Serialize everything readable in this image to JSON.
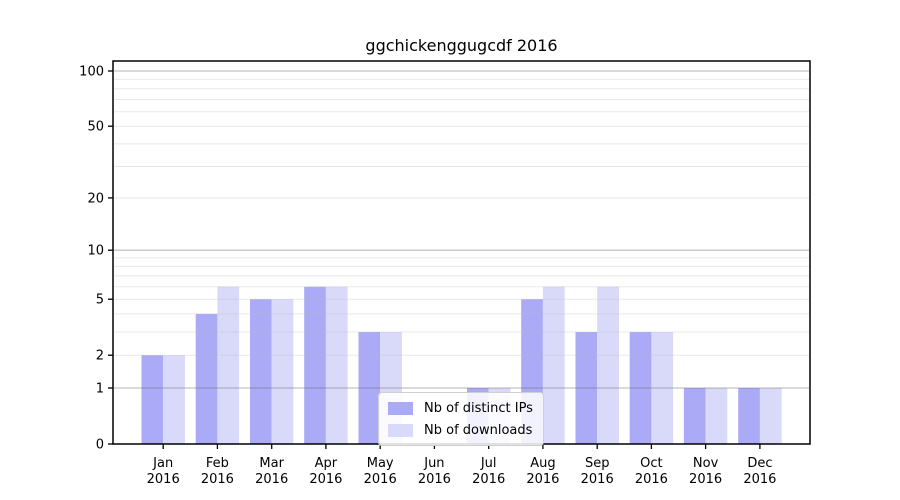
{
  "chart_data": {
    "type": "bar",
    "title": "ggchickenggugcdf 2016",
    "categories": [
      "Jan",
      "Feb",
      "Mar",
      "Apr",
      "May",
      "Jun",
      "Jul",
      "Aug",
      "Sep",
      "Oct",
      "Nov",
      "Dec"
    ],
    "category_year": "2016",
    "series": [
      {
        "name": "Nb of distinct IPs",
        "color": "#aaaaf6",
        "values": [
          2,
          4,
          5,
          6,
          3,
          0,
          1,
          5,
          3,
          3,
          1,
          1
        ]
      },
      {
        "name": "Nb of downloads",
        "color": "#d9d9fa",
        "values": [
          2,
          6,
          5,
          6,
          3,
          0,
          1,
          6,
          6,
          3,
          1,
          1
        ]
      }
    ],
    "yscale": "log1p",
    "ylim": [
      0,
      100
    ],
    "yticks": [
      0,
      1,
      2,
      5,
      10,
      20,
      50,
      100
    ],
    "major_gridlines": [
      1,
      10,
      100
    ],
    "minor_gridlines": [
      2,
      3,
      4,
      5,
      6,
      7,
      8,
      9,
      20,
      30,
      40,
      50,
      60,
      70,
      80,
      90
    ],
    "xlabel": "",
    "ylabel": "",
    "legend": {
      "position": "lower-center",
      "entries": [
        {
          "label": "Nb of distinct IPs",
          "color": "#aaaaf6"
        },
        {
          "label": "Nb of downloads",
          "color": "#d9d9fa"
        }
      ]
    },
    "colors": {
      "background": "#ffffff",
      "spine": "#000000",
      "minor_grid": "#bdbdbd",
      "major_grid": "#6e6e6e",
      "text": "#000000"
    }
  }
}
